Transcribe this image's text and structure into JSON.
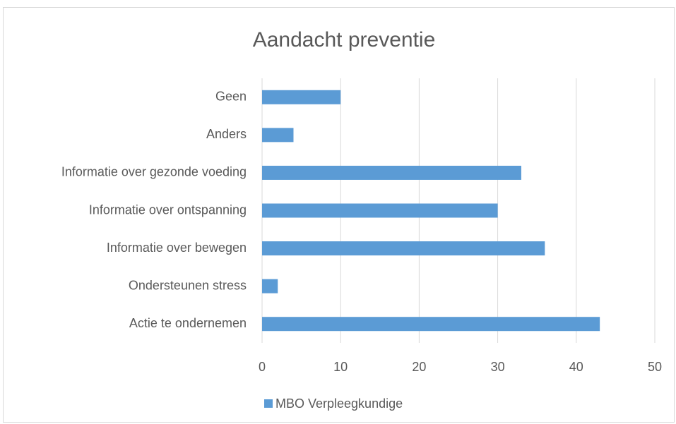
{
  "chart_data": {
    "type": "bar",
    "orientation": "horizontal",
    "title": "Aandacht preventie",
    "categories": [
      "Geen",
      "Anders",
      "Informatie over gezonde voeding",
      "Informatie over ontspanning",
      "Informatie over bewegen",
      "Ondersteunen stress",
      "Actie te ondernemen"
    ],
    "series": [
      {
        "name": "MBO Verpleegkundige",
        "color": "#5b9bd5",
        "values": [
          10,
          4,
          33,
          30,
          36,
          2,
          43
        ]
      }
    ],
    "xlim": [
      0,
      50
    ],
    "xticks": [
      0,
      10,
      20,
      30,
      40,
      50
    ],
    "grid": true,
    "legend": "bottom"
  }
}
